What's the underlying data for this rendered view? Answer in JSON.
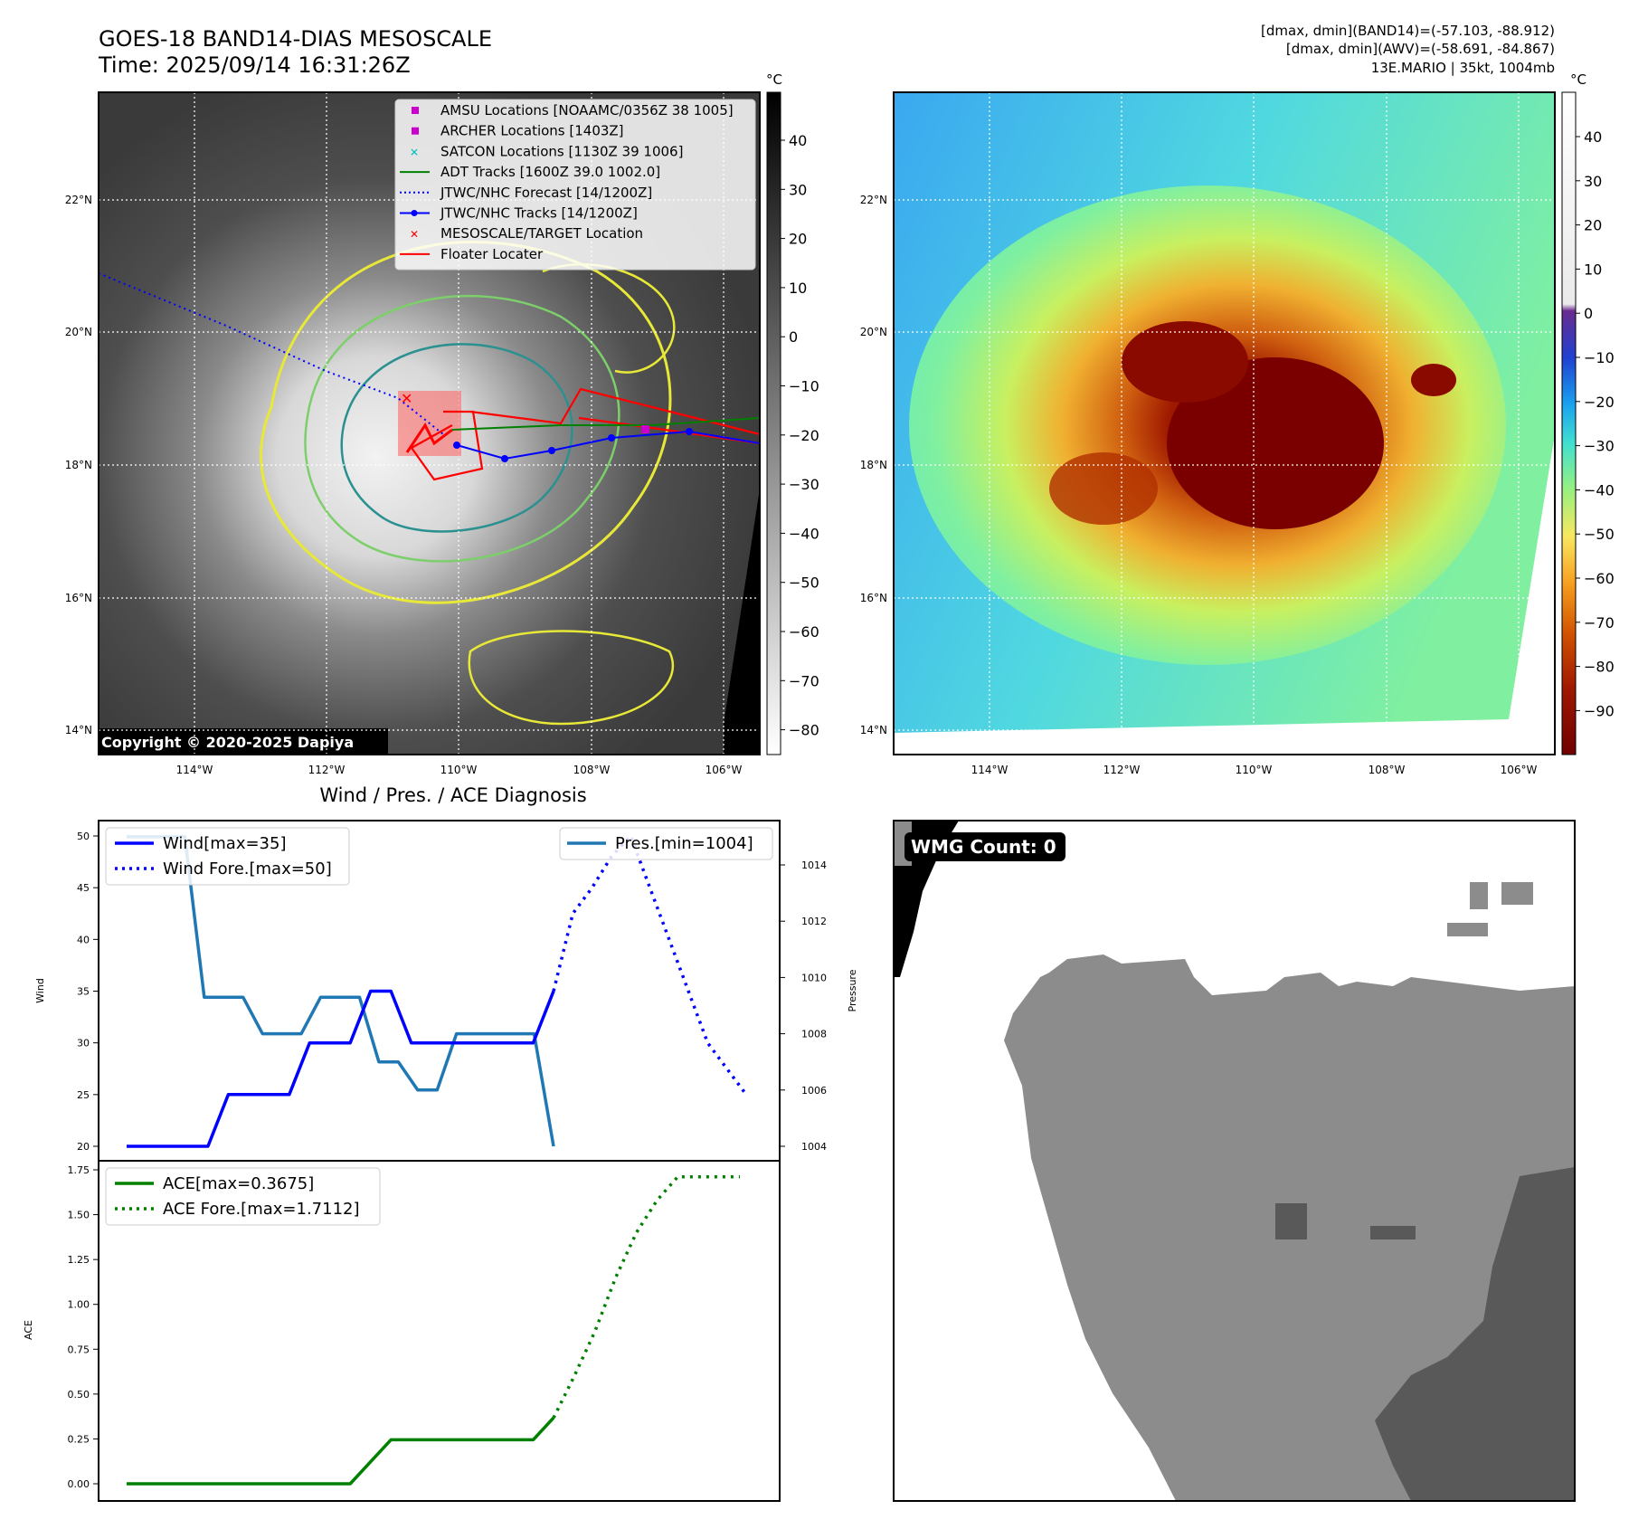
{
  "header": {
    "title_line1": "GOES-18 BAND14-DIAS MESOSCALE",
    "title_line2": "Time: 2025/09/14 16:31:26Z",
    "stats_line1": "[dmax, dmin](BAND14)=(-57.103, -88.912)",
    "stats_line2": "[dmax, dmin](AWV)=(-58.691, -84.867)",
    "stats_line3": "13E.MARIO | 35kt, 1004mb"
  },
  "map": {
    "lat_labels": [
      "22°N",
      "20°N",
      "18°N",
      "16°N",
      "14°N"
    ],
    "lon_labels": [
      "114°W",
      "112°W",
      "110°W",
      "108°W",
      "106°W"
    ],
    "copyright": "Copyright © 2020-2025 Dapiya",
    "unit": "°C",
    "legend": [
      {
        "label": "AMSU Locations [NOAAMC/0356Z 38 1005]",
        "marker": "square",
        "color": "#cc00cc"
      },
      {
        "label": "ARCHER Locations [1403Z]",
        "marker": "square",
        "color": "#cc00cc"
      },
      {
        "label": "SATCON Locations [1130Z 39 1006]",
        "marker": "x",
        "color": "#00bfbf"
      },
      {
        "label": "ADT Tracks [1600Z 39.0 1002.0]",
        "marker": "line",
        "color": "#008000"
      },
      {
        "label": "JTWC/NHC Forecast [14/1200Z]",
        "marker": "dotted",
        "color": "#0000ff"
      },
      {
        "label": "JTWC/NHC Tracks [14/1200Z]",
        "marker": "line-dot",
        "color": "#0000ff"
      },
      {
        "label": "MESOSCALE/TARGET Location",
        "marker": "x",
        "color": "#ff0000"
      },
      {
        "label": "Floater Locater",
        "marker": "line",
        "color": "#ff0000"
      }
    ],
    "colorbar_gray_ticks": [
      "40",
      "30",
      "20",
      "10",
      "0",
      "−10",
      "−20",
      "−30",
      "−40",
      "−50",
      "−60",
      "−70",
      "−80"
    ],
    "colorbar_color_ticks": [
      "40",
      "30",
      "20",
      "10",
      "0",
      "−10",
      "−20",
      "−30",
      "−40",
      "−50",
      "−60",
      "−70",
      "−80",
      "−90"
    ]
  },
  "diag": {
    "title": "Wind / Pres. / ACE Diagnosis",
    "wind_ylabel": "Wind",
    "pres_ylabel": "Pressure",
    "ace_ylabel": "ACE",
    "wind_ticks": [
      "50",
      "45",
      "40",
      "35",
      "30",
      "25",
      "20"
    ],
    "pres_ticks": [
      "1014",
      "1012",
      "1010",
      "1008",
      "1006",
      "1004"
    ],
    "ace_ticks": [
      "1.75",
      "1.50",
      "1.25",
      "1.00",
      "0.75",
      "0.50",
      "0.25",
      "0.00"
    ],
    "legend_wind": "Wind[max=35]",
    "legend_wind_fore": "Wind Fore.[max=50]",
    "legend_pres": "Pres.[min=1004]",
    "legend_ace": "ACE[max=0.3675]",
    "legend_ace_fore": "ACE Fore.[max=1.7112]"
  },
  "wmg": {
    "label": "WMG Count: 0"
  },
  "chart_data": [
    {
      "type": "line",
      "title": "Wind / Pres. / ACE Diagnosis",
      "ylabel": "Wind",
      "ylim": [
        19,
        51
      ],
      "series": [
        {
          "name": "Wind[max=35]",
          "values": [
            20,
            20,
            20,
            20,
            20,
            25,
            25,
            25,
            25,
            30,
            30,
            30,
            35,
            35,
            30,
            30,
            30,
            30,
            30,
            30,
            30,
            35
          ]
        },
        {
          "name": "Wind Fore.[max=50]",
          "values": [
            35,
            42.5,
            45,
            48,
            50,
            45,
            40,
            35,
            30,
            27.5,
            25
          ]
        }
      ]
    },
    {
      "type": "line",
      "ylabel": "Pressure",
      "ylim": [
        1003.5,
        1015.5
      ],
      "series": [
        {
          "name": "Pres.[min=1004]",
          "values": [
            1015,
            1015,
            1015,
            1015,
            1009.3,
            1009.3,
            1009.3,
            1008,
            1008,
            1008,
            1009.3,
            1009.3,
            1009.3,
            1007,
            1007,
            1006,
            1006,
            1008,
            1008,
            1008,
            1008,
            1008,
            1004
          ]
        }
      ]
    },
    {
      "type": "line",
      "ylabel": "ACE",
      "ylim": [
        -0.09,
        1.82
      ],
      "series": [
        {
          "name": "ACE[max=0.3675]",
          "values": [
            0,
            0,
            0,
            0,
            0,
            0,
            0,
            0,
            0,
            0,
            0,
            0,
            0.1225,
            0.245,
            0.245,
            0.245,
            0.245,
            0.245,
            0.245,
            0.245,
            0.245,
            0.3675
          ]
        },
        {
          "name": "ACE Fore.[max=1.7112]",
          "values": [
            0.3675,
            0.6,
            0.85,
            1.15,
            1.4,
            1.58,
            1.7112,
            1.7112,
            1.7112,
            1.7112
          ]
        }
      ]
    }
  ]
}
